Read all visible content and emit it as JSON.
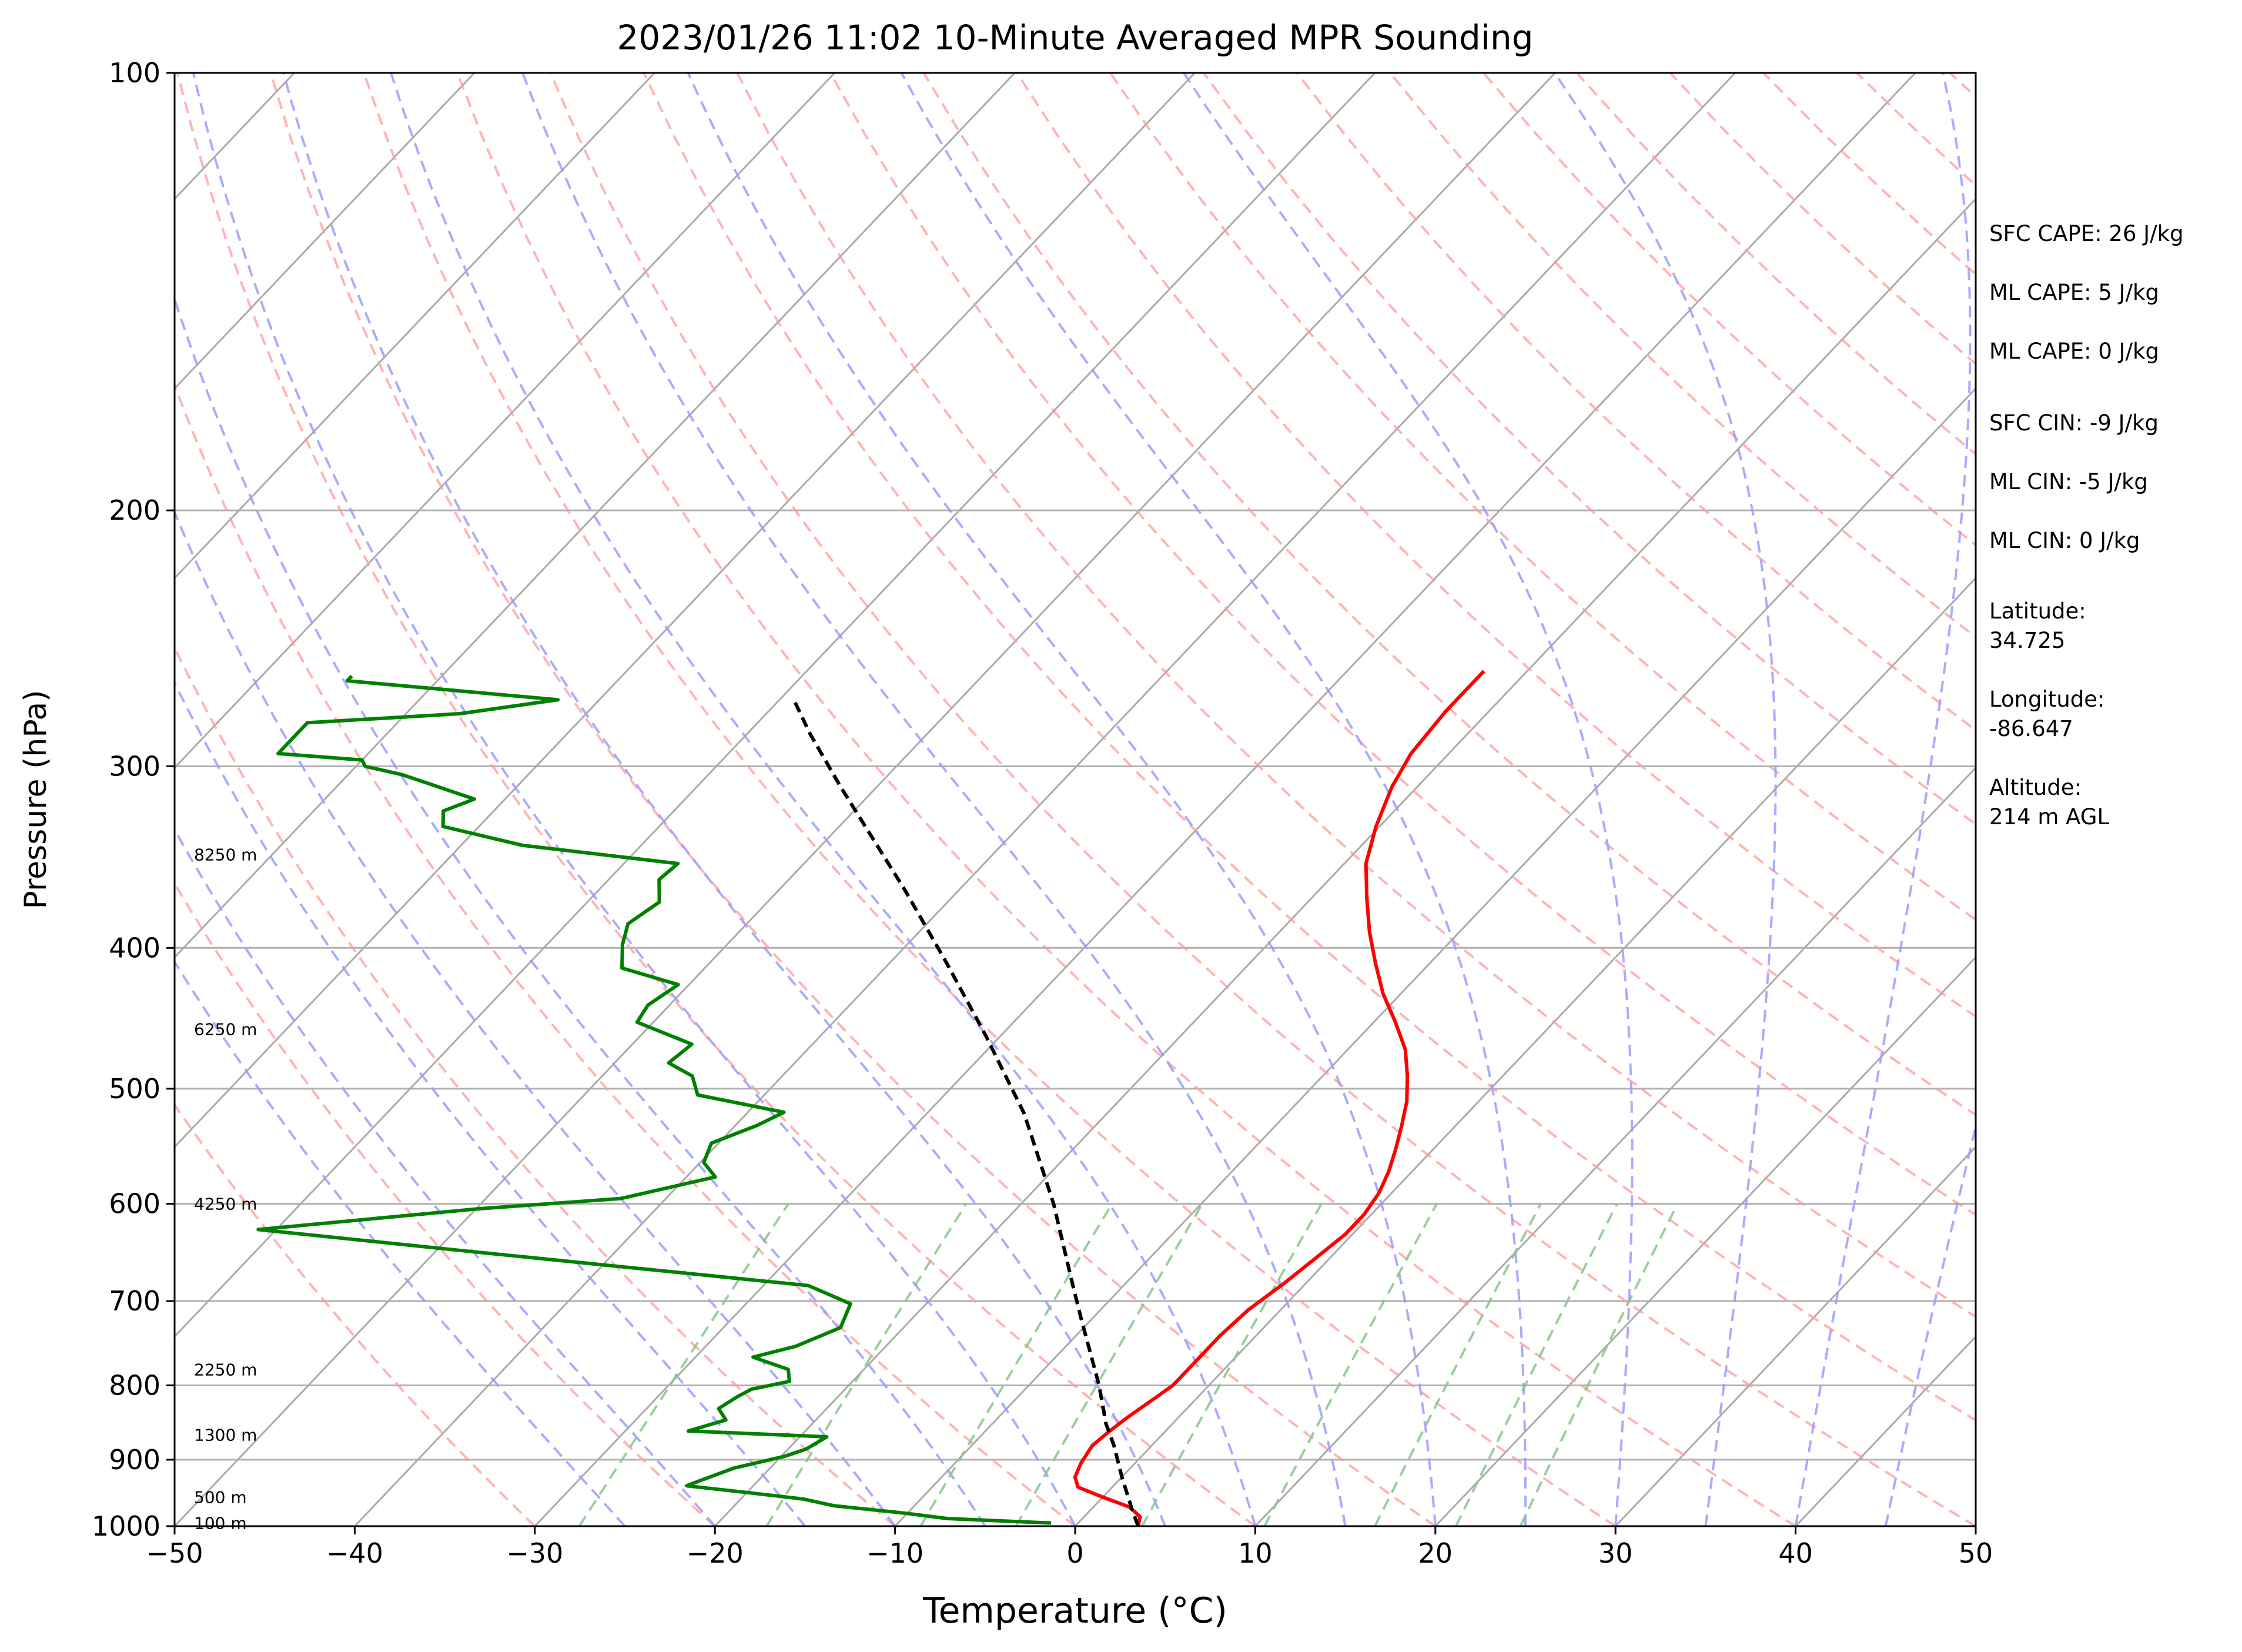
{
  "chart_data": {
    "type": "skew-t",
    "title": "2023/01/26 11:02 10-Minute Averaged MPR Sounding",
    "xlabel": "Temperature (°C)",
    "ylabel": "Pressure (hPa)",
    "xlim": [
      -50,
      50
    ],
    "ylim": [
      1000,
      100
    ],
    "y_scale": "log",
    "x_ticks": [
      "−50",
      "−40",
      "−30",
      "−20",
      "−10",
      "0",
      "10",
      "20",
      "30",
      "40",
      "50"
    ],
    "y_ticks": [
      "100",
      "200",
      "300",
      "400",
      "500",
      "600",
      "700",
      "800",
      "900",
      "1000"
    ],
    "height_labels": [
      {
        "p": 995,
        "label": "100 m"
      },
      {
        "p": 955,
        "label": "500 m"
      },
      {
        "p": 865,
        "label": "1300 m"
      },
      {
        "p": 780,
        "label": "2250 m"
      },
      {
        "p": 600,
        "label": "4250 m"
      },
      {
        "p": 455,
        "label": "6250 m"
      },
      {
        "p": 345,
        "label": "8250 m"
      }
    ],
    "series": [
      {
        "color": "#ff0000",
        "points": [
          [
            3.5,
            1000
          ],
          [
            3.1,
            985
          ],
          [
            2.0,
            970
          ],
          [
            0.0,
            955
          ],
          [
            -1.9,
            940
          ],
          [
            -2.6,
            925
          ],
          [
            -3.0,
            905
          ],
          [
            -3.3,
            880
          ],
          [
            -3.1,
            860
          ],
          [
            -2.8,
            840
          ],
          [
            -2.4,
            820
          ],
          [
            -2.0,
            800
          ],
          [
            -2.0,
            770
          ],
          [
            -2.0,
            740
          ],
          [
            -1.8,
            710
          ],
          [
            -1.2,
            680
          ],
          [
            -0.8,
            655
          ],
          [
            -0.4,
            630
          ],
          [
            -0.4,
            610
          ],
          [
            -0.7,
            590
          ],
          [
            -1.3,
            570
          ],
          [
            -2.1,
            550
          ],
          [
            -3.0,
            530
          ],
          [
            -4.0,
            510
          ],
          [
            -5.3,
            490
          ],
          [
            -6.8,
            470
          ],
          [
            -8.8,
            450
          ],
          [
            -11.0,
            430
          ],
          [
            -13.0,
            410
          ],
          [
            -15.0,
            390
          ],
          [
            -16.9,
            370
          ],
          [
            -18.8,
            350
          ],
          [
            -20.2,
            330
          ],
          [
            -21.4,
            310
          ],
          [
            -22.1,
            294
          ],
          [
            -22.4,
            275
          ],
          [
            -22.4,
            258
          ]
        ]
      },
      {
        "color": "#008000",
        "points": [
          [
            -1.5,
            995
          ],
          [
            -7.5,
            988
          ],
          [
            -10.0,
            980
          ],
          [
            -14.5,
            968
          ],
          [
            -16.5,
            958
          ],
          [
            -20.0,
            948
          ],
          [
            -23.7,
            938
          ],
          [
            -23.2,
            930
          ],
          [
            -22.0,
            912
          ],
          [
            -19.8,
            895
          ],
          [
            -19.0,
            885
          ],
          [
            -18.5,
            868
          ],
          [
            -26.5,
            860
          ],
          [
            -25.0,
            845
          ],
          [
            -26.0,
            830
          ],
          [
            -25.6,
            815
          ],
          [
            -25.2,
            805
          ],
          [
            -23.5,
            795
          ],
          [
            -24.2,
            780
          ],
          [
            -26.8,
            765
          ],
          [
            -25.0,
            752
          ],
          [
            -23.5,
            730
          ],
          [
            -24.2,
            703
          ],
          [
            -27.5,
            683
          ],
          [
            -49.3,
            645
          ],
          [
            -61.0,
            625
          ],
          [
            -50.0,
            605
          ],
          [
            -42.5,
            595
          ],
          [
            -38.4,
            575
          ],
          [
            -39.8,
            562
          ],
          [
            -40.4,
            545
          ],
          [
            -38.8,
            530
          ],
          [
            -38.0,
            519
          ],
          [
            -43.7,
            505
          ],
          [
            -45.0,
            490
          ],
          [
            -47.0,
            480
          ],
          [
            -46.7,
            466
          ],
          [
            -50.9,
            450
          ],
          [
            -51.2,
            438
          ],
          [
            -50.6,
            424
          ],
          [
            -54.6,
            413
          ],
          [
            -55.8,
            398
          ],
          [
            -56.6,
            385
          ],
          [
            -56.0,
            372
          ],
          [
            -57.2,
            359
          ],
          [
            -57.0,
            350
          ],
          [
            -66.6,
            340
          ],
          [
            -72.0,
            330
          ],
          [
            -72.8,
            322
          ],
          [
            -71.7,
            316
          ],
          [
            -77.0,
            304
          ],
          [
            -79.5,
            300
          ],
          [
            -80.0,
            297
          ],
          [
            -85.0,
            294
          ],
          [
            -85.0,
            290
          ],
          [
            -85.0,
            280
          ],
          [
            -77.0,
            276
          ],
          [
            -72.3,
            270
          ],
          [
            -85.0,
            262
          ],
          [
            -85.0,
            260
          ]
        ]
      },
      {
        "color": "#000000",
        "points": [
          [
            3.5,
            1000
          ],
          [
            2.1,
            970
          ],
          [
            0.0,
            925
          ],
          [
            -2.1,
            880
          ],
          [
            -3.7,
            850
          ],
          [
            -6.1,
            800
          ],
          [
            -10.6,
            720
          ],
          [
            -13.0,
            680
          ],
          [
            -18.2,
            600
          ],
          [
            -24.6,
            520
          ],
          [
            -30.8,
            460
          ],
          [
            -36.8,
            410
          ],
          [
            -43.0,
            365
          ],
          [
            -52.0,
            310
          ],
          [
            -56.5,
            285
          ],
          [
            -59.2,
            270
          ]
        ]
      }
    ],
    "annotations": [
      "SFC CAPE: 26 J/kg",
      "ML CAPE: 5 J/kg",
      "ML CAPE: 0 J/kg",
      "SFC CIN: -9 J/kg",
      "ML CIN: -5 J/kg",
      "ML CIN: 0 J/kg",
      "Latitude:",
      "34.725",
      "Longitude:",
      "-86.647",
      "Altitude:",
      "214 m AGL"
    ],
    "grid": true,
    "colors": {
      "isotherm": "#aaaaaa",
      "dry_adiabat": "#ff9a9a",
      "moist_adiabat": "#9b9bff",
      "mixing_ratio": "#88c488"
    }
  }
}
